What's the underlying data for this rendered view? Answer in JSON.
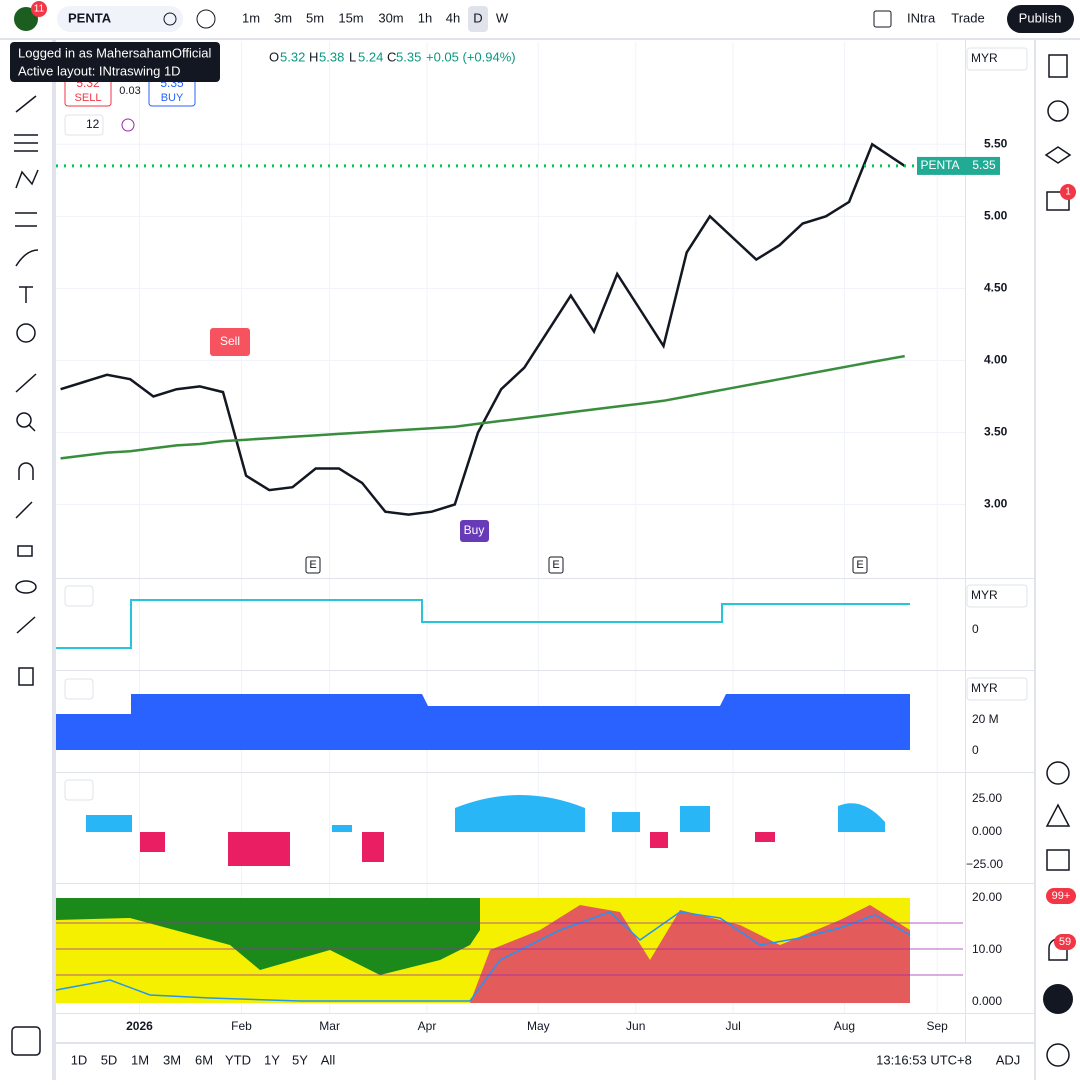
{
  "toolbar": {
    "badge": "11",
    "symbol": "PENTA",
    "timeframes": [
      "1m",
      "3m",
      "5m",
      "15m",
      "30m",
      "1h",
      "4h",
      "D",
      "W"
    ],
    "layout_short": "INtra",
    "trade": "Trade",
    "publish": "Publish"
  },
  "tooltip": {
    "line1": "Logged in as MahersahamOfficial",
    "line2": "Active layout: INtraswing 1D"
  },
  "legend": {
    "o": "O",
    "o_val": "5.32",
    "h": "H",
    "h_val": "5.38",
    "l": "L",
    "l_val": "5.24",
    "c": "C",
    "c_val": "5.35",
    "change": "+0.05 (+0.94%)",
    "indicator_count": "12"
  },
  "order_panel": {
    "sell_price": "5.32",
    "sell": "SELL",
    "spread": "0.03",
    "buy_price": "5.35",
    "buy": "BUY"
  },
  "currency": [
    "MYR",
    "MYR",
    "MYR"
  ],
  "price_label": {
    "symbol": "PENTA",
    "price": "5.35"
  },
  "signals": {
    "sell": "Sell",
    "buy": "Buy"
  },
  "earnings": [
    "E",
    "E",
    "E"
  ],
  "chart_data": {
    "type": "line",
    "x": [
      0,
      5,
      10,
      15,
      20,
      25,
      30,
      35,
      40,
      45,
      50,
      55,
      60,
      65,
      70,
      75,
      80,
      85,
      90,
      95,
      100,
      105,
      110,
      115,
      120,
      125,
      130,
      135,
      140,
      145,
      150,
      155,
      160,
      165,
      170,
      175,
      182
    ],
    "series": [
      {
        "color": "#131722",
        "values": [
          3.8,
          3.85,
          3.9,
          3.87,
          3.75,
          3.8,
          3.82,
          3.78,
          3.2,
          3.1,
          3.12,
          3.25,
          3.25,
          3.15,
          2.95,
          2.93,
          2.95,
          3.0,
          3.5,
          3.8,
          3.95,
          4.2,
          4.45,
          4.2,
          4.6,
          4.35,
          4.1,
          4.75,
          5.0,
          4.85,
          4.7,
          4.8,
          4.95,
          5.0,
          5.1,
          5.5,
          5.35
        ]
      },
      {
        "color": "#388e3c",
        "values": [
          3.32,
          3.34,
          3.36,
          3.37,
          3.39,
          3.41,
          3.42,
          3.44,
          3.45,
          3.46,
          3.47,
          3.48,
          3.49,
          3.5,
          3.51,
          3.52,
          3.53,
          3.54,
          3.56,
          3.58,
          3.6,
          3.62,
          3.64,
          3.66,
          3.68,
          3.7,
          3.72,
          3.75,
          3.78,
          3.81,
          3.84,
          3.87,
          3.9,
          3.93,
          3.96,
          3.99,
          4.03
        ]
      }
    ],
    "xlim": [
      -1,
      195
    ],
    "xticks": [
      {
        "value": 17,
        "label": "2026"
      },
      {
        "value": 39,
        "label": "Feb"
      },
      {
        "value": 58,
        "label": "Mar"
      },
      {
        "value": 79,
        "label": "Apr"
      },
      {
        "value": 103,
        "label": "May"
      },
      {
        "value": 124,
        "label": "Jun"
      },
      {
        "value": 145,
        "label": "Jul"
      },
      {
        "value": 169,
        "label": "Aug"
      },
      {
        "value": 189,
        "label": "Sep"
      }
    ],
    "ylim": [
      2.49,
      6.21
    ],
    "yticks": [
      {
        "value": 3,
        "label": "3.00"
      },
      {
        "value": 3.5,
        "label": "3.50"
      },
      {
        "value": 4,
        "label": "4.00"
      },
      {
        "value": 4.5,
        "label": "4.50"
      },
      {
        "value": 5,
        "label": "5.00"
      },
      {
        "value": 5.5,
        "label": "5.50"
      }
    ],
    "grid": true
  },
  "panes": [
    {
      "ticks": [
        "0"
      ]
    },
    {
      "ticks": [
        "20 M",
        "0"
      ]
    },
    {
      "ticks": [
        "25.00",
        "0.000",
        "−25.00"
      ]
    },
    {
      "ticks": [
        "20.00",
        "10.00",
        "0.000"
      ]
    }
  ],
  "bottom": {
    "ranges": [
      "1D",
      "5D",
      "1M",
      "3M",
      "6M",
      "YTD",
      "1Y",
      "5Y",
      "All"
    ],
    "clock": "13:16:53 UTC+8",
    "adj": "ADJ"
  },
  "notifications": {
    "chat": "1",
    "feed": "99+",
    "alerts": "59"
  }
}
